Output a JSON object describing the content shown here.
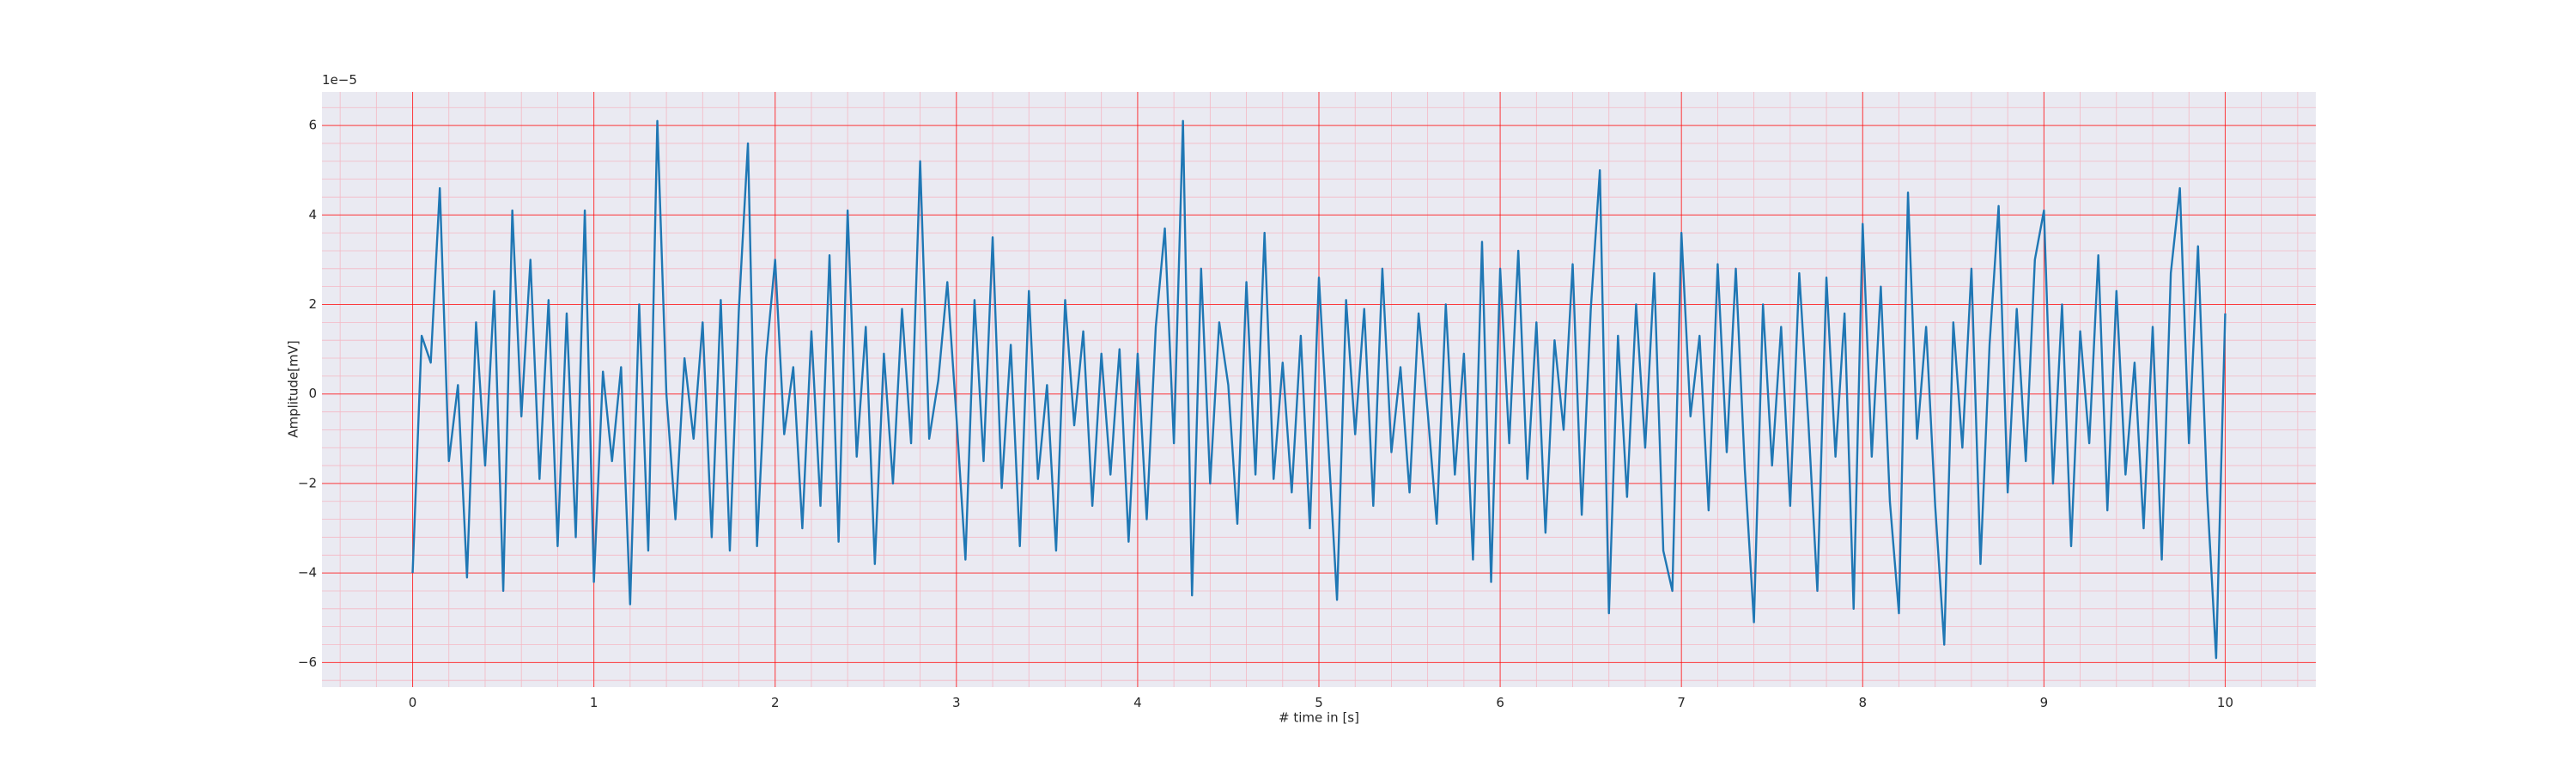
{
  "chart_data": {
    "type": "line",
    "xlabel": "# time in [s]",
    "ylabel": "Amplitude[mV]",
    "offset_text": "1e−5",
    "x": [
      0,
      0.05,
      0.1,
      0.15,
      0.2,
      0.25,
      0.3,
      0.35,
      0.4,
      0.45,
      0.5,
      0.55,
      0.6,
      0.65,
      0.7,
      0.75,
      0.8,
      0.85,
      0.9,
      0.95,
      1,
      1.05,
      1.1,
      1.15,
      1.2,
      1.25,
      1.3,
      1.35,
      1.4,
      1.45,
      1.5,
      1.55,
      1.6,
      1.65,
      1.7,
      1.75,
      1.8,
      1.85,
      1.9,
      1.95,
      2,
      2.05,
      2.1,
      2.15,
      2.2,
      2.25,
      2.3,
      2.35,
      2.4,
      2.45,
      2.5,
      2.55,
      2.6,
      2.65,
      2.7,
      2.75,
      2.8,
      2.85,
      2.9,
      2.95,
      3,
      3.05,
      3.1,
      3.15,
      3.2,
      3.25,
      3.3,
      3.35,
      3.4,
      3.45,
      3.5,
      3.55,
      3.6,
      3.65,
      3.7,
      3.75,
      3.8,
      3.85,
      3.9,
      3.95,
      4,
      4.05,
      4.1,
      4.15,
      4.2,
      4.25,
      4.3,
      4.35,
      4.4,
      4.45,
      4.5,
      4.55,
      4.6,
      4.65,
      4.7,
      4.75,
      4.8,
      4.85,
      4.9,
      4.95,
      5,
      5.05,
      5.1,
      5.15,
      5.2,
      5.25,
      5.3,
      5.35,
      5.4,
      5.45,
      5.5,
      5.55,
      5.6,
      5.65,
      5.7,
      5.75,
      5.8,
      5.85,
      5.9,
      5.95,
      6,
      6.05,
      6.1,
      6.15,
      6.2,
      6.25,
      6.3,
      6.35,
      6.4,
      6.45,
      6.5,
      6.55,
      6.6,
      6.65,
      6.7,
      6.75,
      6.8,
      6.85,
      6.9,
      6.95,
      7,
      7.05,
      7.1,
      7.15,
      7.2,
      7.25,
      7.3,
      7.35,
      7.4,
      7.45,
      7.5,
      7.55,
      7.6,
      7.65,
      7.7,
      7.75,
      7.8,
      7.85,
      7.9,
      7.95,
      8,
      8.05,
      8.1,
      8.15,
      8.2,
      8.25,
      8.3,
      8.35,
      8.4,
      8.45,
      8.5,
      8.55,
      8.6,
      8.65,
      8.7,
      8.75,
      8.8,
      8.85,
      8.9,
      8.95,
      9,
      9.05,
      9.1,
      9.15,
      9.2,
      9.25,
      9.3,
      9.35,
      9.4,
      9.45,
      9.5,
      9.55,
      9.6,
      9.65,
      9.7,
      9.75,
      9.8,
      9.85,
      9.9,
      9.95,
      10
    ],
    "series": [
      {
        "color": "#1f77b4",
        "values": [
          -4.0,
          1.3,
          0.7,
          4.6,
          -1.5,
          0.2,
          -4.1,
          1.6,
          -1.6,
          2.3,
          -4.4,
          4.1,
          -0.5,
          3.0,
          -1.9,
          2.1,
          -3.4,
          1.8,
          -3.2,
          4.1,
          -4.2,
          0.5,
          -1.5,
          0.6,
          -4.7,
          2.0,
          -3.5,
          6.1,
          0.0,
          -2.8,
          0.8,
          -1.0,
          1.6,
          -3.2,
          2.1,
          -3.5,
          1.9,
          5.6,
          -3.4,
          0.8,
          3.0,
          -0.9,
          0.6,
          -3.0,
          1.4,
          -2.5,
          3.1,
          -3.3,
          4.1,
          -1.4,
          1.5,
          -3.8,
          0.9,
          -2.0,
          1.9,
          -1.1,
          5.2,
          -1.0,
          0.3,
          2.5,
          -0.5,
          -3.7,
          2.1,
          -1.5,
          3.5,
          -2.1,
          1.1,
          -3.4,
          2.3,
          -1.9,
          0.2,
          -3.5,
          2.1,
          -0.7,
          1.4,
          -2.5,
          0.9,
          -1.8,
          1.0,
          -3.3,
          0.9,
          -2.8,
          1.5,
          3.7,
          -1.1,
          6.1,
          -4.5,
          2.8,
          -2.0,
          1.6,
          0.2,
          -2.9,
          2.5,
          -1.8,
          3.6,
          -1.9,
          0.7,
          -2.2,
          1.3,
          -3.0,
          2.6,
          -1.0,
          -4.6,
          2.1,
          -0.9,
          1.9,
          -2.5,
          2.8,
          -1.3,
          0.6,
          -2.2,
          1.8,
          -0.4,
          -2.9,
          2.0,
          -1.8,
          0.9,
          -3.7,
          3.4,
          -4.2,
          2.8,
          -1.1,
          3.2,
          -1.9,
          1.6,
          -3.1,
          1.2,
          -0.8,
          2.9,
          -2.7,
          1.9,
          5.0,
          -4.9,
          1.3,
          -2.3,
          2.0,
          -1.2,
          2.7,
          -3.5,
          -4.4,
          3.6,
          -0.5,
          1.3,
          -2.6,
          2.9,
          -1.3,
          2.8,
          -1.7,
          -5.1,
          2.0,
          -1.6,
          1.5,
          -2.5,
          2.7,
          -0.6,
          -4.4,
          2.6,
          -1.4,
          1.8,
          -4.8,
          3.8,
          -1.4,
          2.4,
          -2.4,
          -4.9,
          4.5,
          -1.0,
          1.5,
          -2.5,
          -5.6,
          1.6,
          -1.2,
          2.8,
          -3.8,
          1.1,
          4.2,
          -2.2,
          1.9,
          -1.5,
          3.0,
          4.1,
          -2.0,
          2.0,
          -3.4,
          1.4,
          -1.1,
          3.1,
          -2.6,
          2.3,
          -1.8,
          0.7,
          -3.0,
          1.5,
          -3.7,
          2.7,
          4.6,
          -1.1,
          3.3,
          -2.2,
          -5.9,
          1.8
        ]
      }
    ],
    "xlim": [
      -0.5,
      10.5
    ],
    "xticks": [
      0,
      1,
      2,
      3,
      4,
      5,
      6,
      7,
      8,
      9,
      10
    ],
    "ylim": [
      -6.55,
      6.75
    ],
    "yticks": [
      {
        "value": -6,
        "label": "−6"
      },
      {
        "value": -4,
        "label": "−4"
      },
      {
        "value": -2,
        "label": "−2"
      },
      0,
      2,
      4,
      6
    ],
    "grid": true,
    "grid_color": "#ff0000",
    "minor_grid": true,
    "background": "#eaeaf2"
  }
}
